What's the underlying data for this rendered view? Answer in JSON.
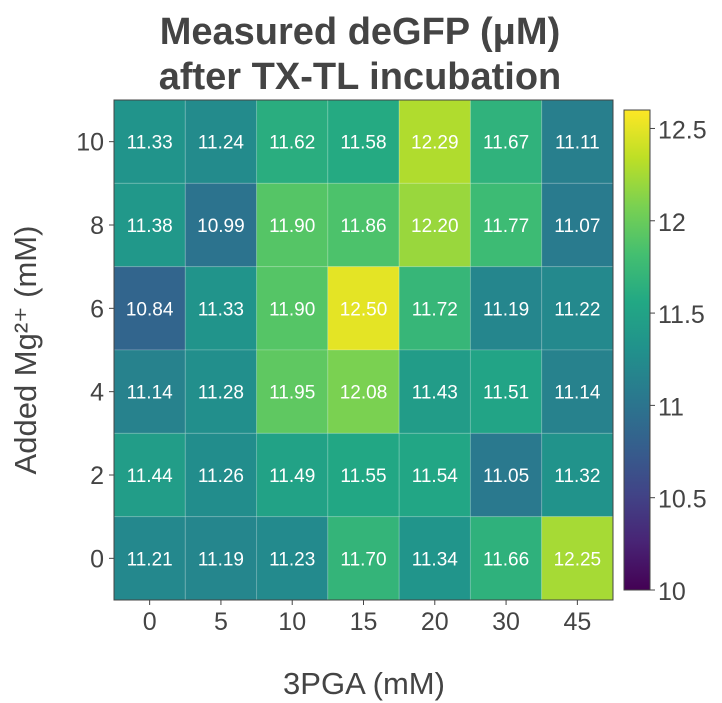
{
  "chart_data": {
    "type": "heatmap",
    "title_line1": "Measured deGFP (μM)",
    "title_line2": "after TX-TL incubation",
    "xlabel": "3PGA (mM)",
    "ylabel": "Added Mg²⁺ (mM)",
    "x_categories": [
      "0",
      "5",
      "10",
      "15",
      "20",
      "30",
      "45"
    ],
    "y_categories": [
      "10",
      "8",
      "6",
      "4",
      "2",
      "0"
    ],
    "values": [
      [
        11.33,
        11.24,
        11.62,
        11.58,
        12.29,
        11.67,
        11.11
      ],
      [
        11.38,
        10.99,
        11.9,
        11.86,
        12.2,
        11.77,
        11.07
      ],
      [
        10.84,
        11.33,
        11.9,
        12.5,
        11.72,
        11.19,
        11.22
      ],
      [
        11.14,
        11.28,
        11.95,
        12.08,
        11.43,
        11.51,
        11.14
      ],
      [
        11.44,
        11.26,
        11.49,
        11.55,
        11.54,
        11.05,
        11.32
      ],
      [
        11.21,
        11.19,
        11.23,
        11.7,
        11.34,
        11.66,
        12.25
      ]
    ],
    "value_labels": [
      [
        "11.33",
        "11.24",
        "11.62",
        "11.58",
        "12.29",
        "11.67",
        "11.11"
      ],
      [
        "11.38",
        "10.99",
        "11.90",
        "11.86",
        "12.20",
        "11.77",
        "11.07"
      ],
      [
        "10.84",
        "11.33",
        "11.90",
        "12.50",
        "11.72",
        "11.19",
        "11.22"
      ],
      [
        "11.14",
        "11.28",
        "11.95",
        "12.08",
        "11.43",
        "11.51",
        "11.14"
      ],
      [
        "11.44",
        "11.26",
        "11.49",
        "11.55",
        "11.54",
        "11.05",
        "11.32"
      ],
      [
        "11.21",
        "11.19",
        "11.23",
        "11.70",
        "11.34",
        "11.66",
        "12.25"
      ]
    ],
    "colormap": "viridis",
    "color_range": [
      10,
      12.6
    ],
    "colorbar_ticks": [
      10,
      10.5,
      11,
      11.5,
      12,
      12.5
    ],
    "colorbar_tick_labels": [
      "10",
      "10.5",
      "11",
      "11.5",
      "12",
      "12.5"
    ],
    "grid": true,
    "colors": {
      "text": "#444444",
      "cell_label": "#ffffff",
      "grid": "#ffffff"
    }
  }
}
